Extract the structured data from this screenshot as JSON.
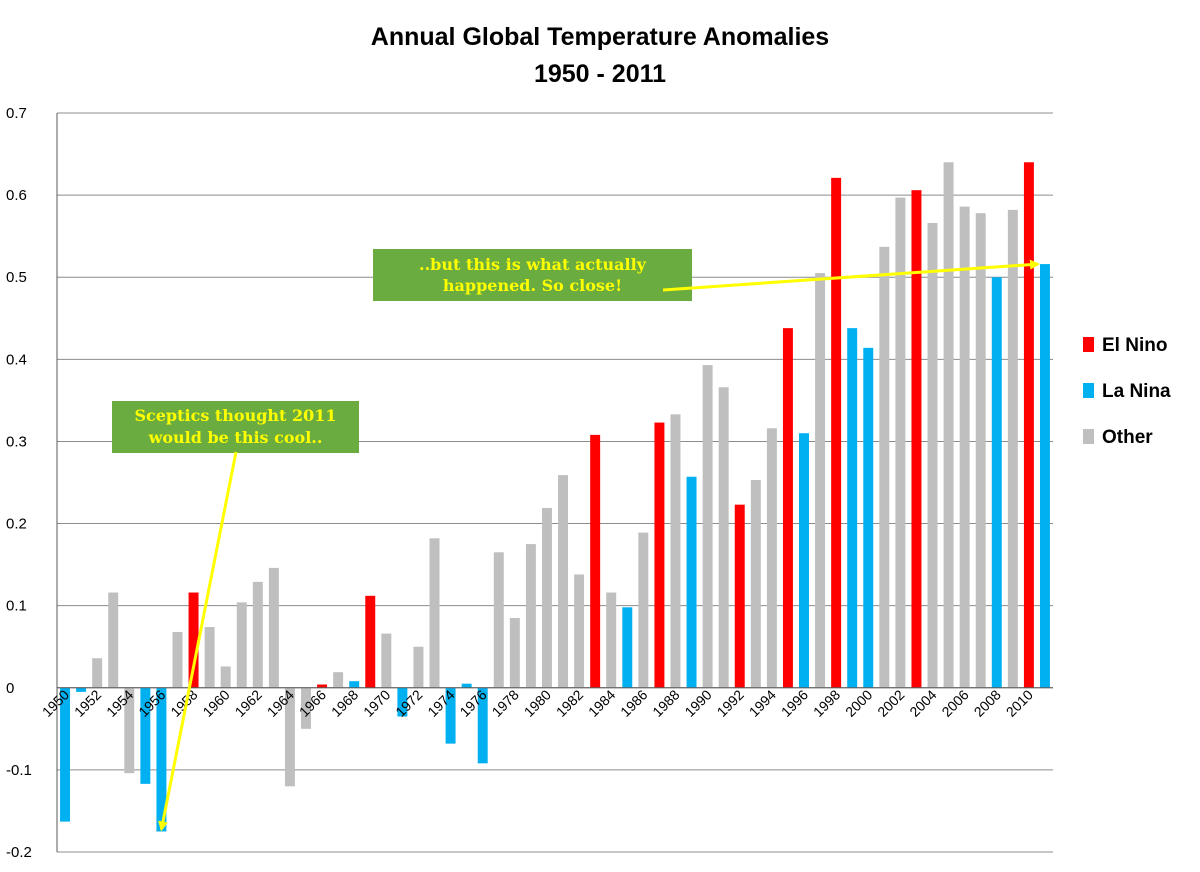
{
  "chart_data": {
    "type": "bar",
    "title": "Annual Global Temperature Anomalies",
    "subtitle": "1950 - 2011",
    "ylim": [
      -0.2,
      0.7
    ],
    "yticks": [
      "-0.2",
      "-0.1",
      "0",
      "0.1",
      "0.2",
      "0.3",
      "0.4",
      "0.5",
      "0.6",
      "0.7"
    ],
    "grid": true,
    "legend_position": "right",
    "colors": {
      "El Nino": "#ff0000",
      "La Nina": "#00b0f0",
      "Other": "#bfbfbf"
    },
    "series_names": [
      "El Nino",
      "La Nina",
      "Other"
    ],
    "x": [
      1950,
      1951,
      1952,
      1953,
      1954,
      1955,
      1956,
      1957,
      1958,
      1959,
      1960,
      1961,
      1962,
      1963,
      1964,
      1965,
      1966,
      1967,
      1968,
      1969,
      1970,
      1971,
      1972,
      1973,
      1974,
      1975,
      1976,
      1977,
      1978,
      1979,
      1980,
      1981,
      1982,
      1983,
      1984,
      1985,
      1986,
      1987,
      1988,
      1989,
      1990,
      1991,
      1992,
      1993,
      1994,
      1995,
      1996,
      1997,
      1998,
      1999,
      2000,
      2001,
      2002,
      2003,
      2004,
      2005,
      2006,
      2007,
      2008,
      2009,
      2010,
      2011
    ],
    "xtick_labels": [
      "1950",
      "1952",
      "1954",
      "1956",
      "1958",
      "1960",
      "1962",
      "1964",
      "1966",
      "1968",
      "1970",
      "1972",
      "1974",
      "1976",
      "1978",
      "1980",
      "1982",
      "1984",
      "1986",
      "1988",
      "1990",
      "1992",
      "1994",
      "1996",
      "1998",
      "2000",
      "2002",
      "2004",
      "2006",
      "2008",
      "2010"
    ],
    "values": [
      -0.163,
      -0.005,
      0.036,
      0.116,
      -0.104,
      -0.117,
      -0.175,
      0.068,
      0.116,
      0.074,
      0.026,
      0.104,
      0.129,
      0.146,
      -0.12,
      -0.05,
      0.004,
      0.019,
      0.008,
      0.112,
      0.066,
      -0.035,
      0.05,
      0.182,
      -0.068,
      0.005,
      -0.092,
      0.165,
      0.085,
      0.175,
      0.219,
      0.259,
      0.138,
      0.308,
      0.116,
      0.098,
      0.189,
      0.323,
      0.333,
      0.257,
      0.393,
      0.366,
      0.223,
      0.253,
      0.316,
      0.438,
      0.31,
      0.505,
      0.621,
      0.438,
      0.414,
      0.537,
      0.597,
      0.606,
      0.566,
      0.64,
      0.586,
      0.578,
      0.5,
      0.582,
      0.64,
      0.516
    ],
    "category": [
      "La Nina",
      "La Nina",
      "Other",
      "Other",
      "Other",
      "La Nina",
      "La Nina",
      "Other",
      "El Nino",
      "Other",
      "Other",
      "Other",
      "Other",
      "Other",
      "Other",
      "Other",
      "El Nino",
      "Other",
      "La Nina",
      "El Nino",
      "Other",
      "La Nina",
      "Other",
      "Other",
      "La Nina",
      "La Nina",
      "La Nina",
      "Other",
      "Other",
      "Other",
      "Other",
      "Other",
      "Other",
      "El Nino",
      "Other",
      "La Nina",
      "Other",
      "El Nino",
      "Other",
      "La Nina",
      "Other",
      "Other",
      "El Nino",
      "Other",
      "Other",
      "El Nino",
      "La Nina",
      "Other",
      "El Nino",
      "La Nina",
      "La Nina",
      "Other",
      "Other",
      "El Nino",
      "Other",
      "Other",
      "Other",
      "Other",
      "La Nina",
      "Other",
      "El Nino",
      "La Nina"
    ],
    "annotations": [
      {
        "id": "sceptics",
        "lines": [
          "Sceptics thought 2011",
          "would be this cool.."
        ],
        "points_to_year": 1956
      },
      {
        "id": "actual",
        "lines": [
          "..but this is what actually",
          "happened.  So close!"
        ],
        "points_to_year": 2011
      }
    ]
  }
}
